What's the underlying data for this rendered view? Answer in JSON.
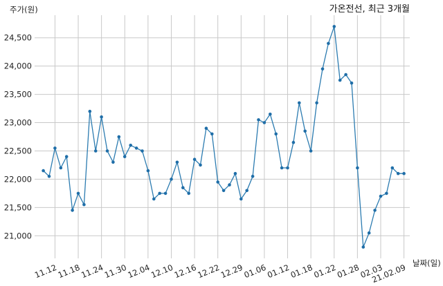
{
  "chart_data": {
    "type": "line",
    "title": "가온전선, 최근 3개월",
    "ylabel": "주가(원)",
    "xlabel": "날짜(일)",
    "ylim": [
      20600,
      24900
    ],
    "yticks": [
      21000,
      21500,
      22000,
      22500,
      23000,
      23500,
      24000,
      24500
    ],
    "ytick_labels": [
      "21,000",
      "21,500",
      "22,000",
      "22,500",
      "23,000",
      "23,500",
      "24,000",
      "24,500"
    ],
    "xtick_labels": [
      "11.12",
      "11.18",
      "11.24",
      "11.30",
      "12.04",
      "12.10",
      "12.16",
      "12.22",
      "12.29",
      "01.06",
      "01.12",
      "01.18",
      "01.22",
      "01.28",
      "02.03",
      "21.02.09"
    ],
    "xtick_index": [
      2,
      6,
      10,
      14,
      18,
      22,
      26,
      30,
      34,
      38,
      42,
      46,
      50,
      54,
      58,
      62
    ],
    "x_range": [
      -1.5,
      63
    ],
    "grid": true,
    "series": [
      {
        "color": "#2b7bb0",
        "values": [
          22150,
          22050,
          22550,
          22200,
          22400,
          21450,
          21750,
          21550,
          23200,
          22500,
          23100,
          22500,
          22300,
          22750,
          22400,
          22600,
          22550,
          22500,
          22150,
          21650,
          21750,
          21750,
          22000,
          22300,
          21850,
          21750,
          22350,
          22250,
          22900,
          22800,
          21950,
          21800,
          21900,
          22100,
          21650,
          21800,
          22050,
          23050,
          23000,
          23150,
          22800,
          22200,
          22200,
          22650,
          23350,
          22850,
          22500,
          23350,
          23950,
          24400,
          24700,
          23750,
          23850,
          23700,
          22200,
          20800,
          21050,
          21450,
          21700,
          21750,
          22200,
          22100,
          22100
        ]
      }
    ]
  }
}
